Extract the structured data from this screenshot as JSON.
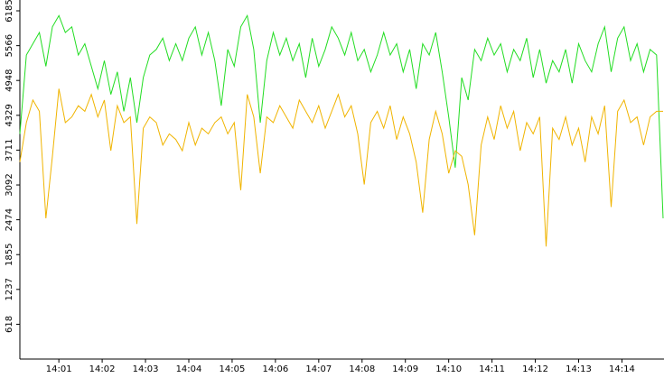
{
  "chart_data": {
    "type": "line",
    "x": [
      0.1,
      0.25,
      0.4,
      0.55,
      0.7,
      0.85,
      1,
      1.15,
      1.3,
      1.45,
      1.6,
      1.75,
      1.9,
      2.05,
      2.2,
      2.35,
      2.5,
      2.65,
      2.8,
      2.95,
      3.1,
      3.25,
      3.4,
      3.55,
      3.7,
      3.85,
      4,
      4.15,
      4.3,
      4.45,
      4.6,
      4.75,
      4.9,
      5.05,
      5.2,
      5.35,
      5.5,
      5.65,
      5.8,
      5.95,
      6.1,
      6.25,
      6.4,
      6.55,
      6.7,
      6.85,
      7,
      7.15,
      7.3,
      7.45,
      7.6,
      7.75,
      7.9,
      8.05,
      8.2,
      8.35,
      8.5,
      8.65,
      8.8,
      8.95,
      9.1,
      9.25,
      9.4,
      9.55,
      9.7,
      9.85,
      10,
      10.15,
      10.3,
      10.45,
      10.6,
      10.75,
      10.9,
      11.05,
      11.2,
      11.35,
      11.5,
      11.65,
      11.8,
      11.95,
      12.1,
      12.25,
      12.4,
      12.55,
      12.7,
      12.85,
      13,
      13.15,
      13.3,
      13.45,
      13.6,
      13.75,
      13.9,
      14.05,
      14.2,
      14.35,
      14.5,
      14.65,
      14.8,
      14.95
    ],
    "series": [
      {
        "color": "#22dd22",
        "values": [
          4000,
          5400,
          5600,
          5800,
          5200,
          5900,
          6100,
          5800,
          5900,
          5400,
          5600,
          5200,
          4800,
          5300,
          4700,
          5100,
          4400,
          5000,
          4200,
          5000,
          5400,
          5500,
          5700,
          5300,
          5600,
          5300,
          5700,
          5900,
          5400,
          5800,
          5300,
          4500,
          5500,
          5200,
          5900,
          6100,
          5500,
          4200,
          5300,
          5800,
          5400,
          5700,
          5300,
          5600,
          5000,
          5700,
          5200,
          5500,
          5900,
          5700,
          5400,
          5800,
          5300,
          5500,
          5100,
          5400,
          5800,
          5400,
          5600,
          5100,
          5500,
          4800,
          5600,
          5400,
          5800,
          5100,
          4300,
          3400,
          5000,
          4600,
          5500,
          5300,
          5700,
          5400,
          5600,
          5100,
          5500,
          5300,
          5700,
          5000,
          5500,
          4900,
          5300,
          5100,
          5500,
          4900,
          5600,
          5300,
          5100,
          5600,
          5900,
          5100,
          5700,
          5900,
          5300,
          5600,
          5100,
          5500,
          5400,
          2500
        ]
      },
      {
        "color": "#f0b400",
        "values": [
          3500,
          4200,
          4600,
          4400,
          2500,
          3600,
          4800,
          4200,
          4300,
          4500,
          4400,
          4700,
          4300,
          4600,
          3700,
          4500,
          4200,
          4300,
          2400,
          4100,
          4300,
          4200,
          3800,
          4000,
          3900,
          3700,
          4200,
          3800,
          4100,
          4000,
          4200,
          4300,
          4000,
          4200,
          3000,
          4700,
          4300,
          3300,
          4300,
          4200,
          4500,
          4300,
          4100,
          4600,
          4400,
          4200,
          4500,
          4100,
          4400,
          4700,
          4300,
          4500,
          4000,
          3100,
          4200,
          4400,
          4100,
          4500,
          3900,
          4300,
          4000,
          3500,
          2600,
          3900,
          4400,
          4000,
          3300,
          3700,
          3600,
          3100,
          2200,
          3800,
          4300,
          3900,
          4500,
          4100,
          4400,
          3700,
          4200,
          4000,
          4300,
          2000,
          4100,
          3900,
          4300,
          3800,
          4100,
          3500,
          4300,
          4000,
          4500,
          2700,
          4400,
          4600,
          4200,
          4300,
          3800,
          4300,
          4400,
          4400
        ]
      }
    ],
    "xlim": [
      0.1,
      14.95
    ],
    "xticks": [
      {
        "value": 1,
        "label": "14:01"
      },
      {
        "value": 2,
        "label": "14:02"
      },
      {
        "value": 3,
        "label": "14:03"
      },
      {
        "value": 4,
        "label": "14:04"
      },
      {
        "value": 5,
        "label": "14:05"
      },
      {
        "value": 6,
        "label": "14:06"
      },
      {
        "value": 7,
        "label": "14:07"
      },
      {
        "value": 8,
        "label": "14:08"
      },
      {
        "value": 9,
        "label": "14:09"
      },
      {
        "value": 10,
        "label": "14:10"
      },
      {
        "value": 11,
        "label": "14:11"
      },
      {
        "value": 12,
        "label": "14:12"
      },
      {
        "value": 13,
        "label": "14:13"
      },
      {
        "value": 14,
        "label": "14:14"
      }
    ],
    "ylim": [
      0,
      6185
    ],
    "yticks": [
      618,
      1237,
      1855,
      2474,
      3092,
      3711,
      4329,
      4948,
      5566,
      6185
    ]
  }
}
